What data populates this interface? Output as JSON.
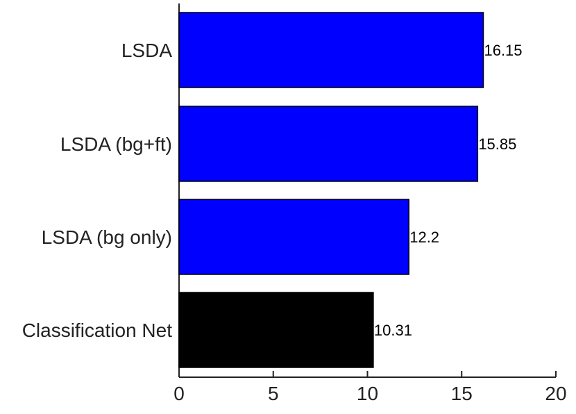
{
  "chart_data": {
    "type": "bar",
    "orientation": "horizontal",
    "title": "",
    "xlabel": "",
    "ylabel": "",
    "categories": [
      "LSDA",
      "LSDA (bg+ft)",
      "LSDA (bg only)",
      "Classification Net"
    ],
    "values": [
      16.15,
      15.85,
      12.2,
      10.31
    ],
    "value_labels": [
      "16.15",
      "15.85",
      "12.2",
      "10.31"
    ],
    "bar_colors": [
      "#0000ff",
      "#0000ff",
      "#0000ff",
      "#000000"
    ],
    "xlim": [
      0,
      20
    ],
    "xticks": [
      0,
      5,
      10,
      15,
      20
    ],
    "xtick_labels": [
      "0",
      "5",
      "10",
      "15",
      "20"
    ],
    "grid": false,
    "legend": "none"
  }
}
